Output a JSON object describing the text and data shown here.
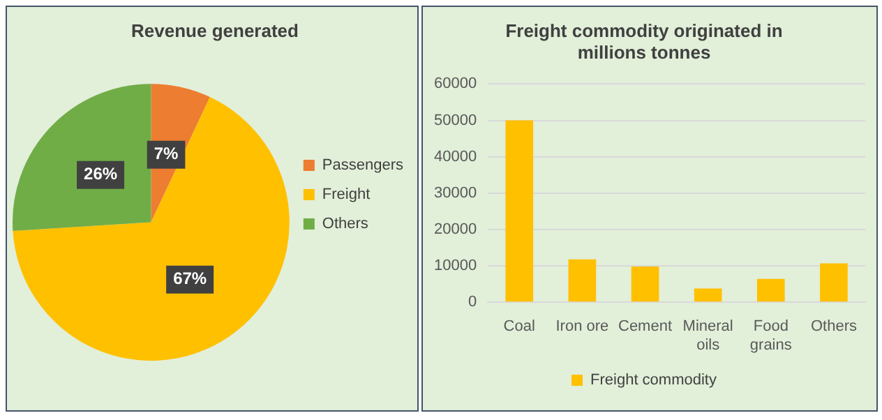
{
  "chart_data": [
    {
      "type": "pie",
      "title": "Revenue generated",
      "categories": [
        "Passengers",
        "Freight",
        "Others"
      ],
      "values": [
        7,
        67,
        26
      ],
      "colors": [
        "#ed7d31",
        "#ffc000",
        "#70ad47"
      ],
      "value_labels": [
        "7%",
        "67%",
        "26%"
      ],
      "legend": "right"
    },
    {
      "type": "bar",
      "title": "Freight commodity originated in millions tonnes",
      "categories": [
        "Coal",
        "Iron ore",
        "Cement",
        "Mineral oils",
        "Food grains",
        "Others"
      ],
      "series": [
        {
          "name": "Freight commodity",
          "color": "#ffc000",
          "values": [
            50000,
            11800,
            9800,
            3800,
            6400,
            10700
          ]
        }
      ],
      "ylim": [
        0,
        60000
      ],
      "yticks": [
        0,
        10000,
        20000,
        30000,
        40000,
        50000,
        60000
      ],
      "grid": "y",
      "legend": "bottom"
    }
  ]
}
